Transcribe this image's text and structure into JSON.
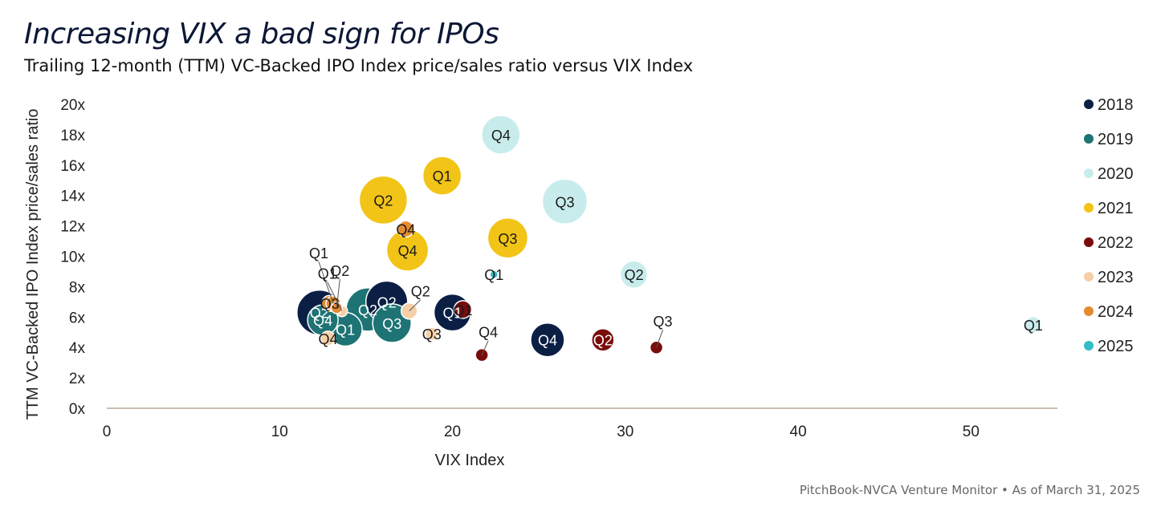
{
  "chart_data": {
    "type": "scatter",
    "title": "Increasing VIX a bad sign for IPOs",
    "subtitle": "Trailing 12-month (TTM) VC-Backed IPO Index price/sales ratio versus VIX Index",
    "xlabel": "VIX Index",
    "ylabel": "TTM VC-Backed IPO Index price/sales ratio",
    "xlim": [
      0,
      55
    ],
    "ylim": [
      0,
      20
    ],
    "xticks": [
      "0",
      "10",
      "20",
      "30",
      "40",
      "50"
    ],
    "yticks": [
      "0x",
      "2x",
      "4x",
      "6x",
      "8x",
      "10x",
      "12x",
      "14x",
      "16x",
      "18x",
      "20x"
    ],
    "legend_position": "right",
    "series": [
      {
        "name": "2018",
        "color": "#0b1f45",
        "points": [
          {
            "label": "Q2",
            "x": 12.3,
            "y": 6.3,
            "size": 28
          },
          {
            "label": "Q2",
            "x": 16.2,
            "y": 7.0,
            "size": 26
          },
          {
            "label": "Q1",
            "x": 20.0,
            "y": 6.3,
            "size": 23
          },
          {
            "label": "Q4",
            "x": 25.5,
            "y": 4.5,
            "size": 21
          }
        ]
      },
      {
        "name": "2019",
        "color": "#1e7374",
        "points": [
          {
            "label": "Q4",
            "x": 12.5,
            "y": 5.8,
            "size": 19
          },
          {
            "label": "Q1",
            "x": 13.8,
            "y": 5.2,
            "size": 21
          },
          {
            "label": "Q2",
            "x": 15.1,
            "y": 6.5,
            "size": 27
          },
          {
            "label": "Q3",
            "x": 16.5,
            "y": 5.6,
            "size": 24
          }
        ]
      },
      {
        "name": "2020",
        "color": "#c8ecec",
        "points": [
          {
            "label": "Q1",
            "x": 53.6,
            "y": 5.5,
            "size": 10
          },
          {
            "label": "Q2",
            "x": 30.5,
            "y": 8.8,
            "size": 17
          },
          {
            "label": "Q3",
            "x": 26.5,
            "y": 13.6,
            "size": 28
          },
          {
            "label": "Q4",
            "x": 22.8,
            "y": 18.0,
            "size": 24
          }
        ]
      },
      {
        "name": "2021",
        "color": "#f2c417",
        "points": [
          {
            "label": "Q1",
            "x": 19.4,
            "y": 15.3,
            "size": 24
          },
          {
            "label": "Q2",
            "x": 16.0,
            "y": 13.7,
            "size": 30
          },
          {
            "label": "Q3",
            "x": 23.2,
            "y": 11.2,
            "size": 25
          },
          {
            "label": "Q4",
            "x": 17.4,
            "y": 10.4,
            "size": 26
          }
        ]
      },
      {
        "name": "2022",
        "color": "#7a0c0c",
        "points": [
          {
            "label": "Q1",
            "x": 20.6,
            "y": 6.5,
            "size": 11
          },
          {
            "label": "Q2",
            "x": 28.7,
            "y": 4.5,
            "size": 14
          },
          {
            "label": "Q3",
            "x": 31.8,
            "y": 4.0,
            "size": 8,
            "callout": true
          },
          {
            "label": "Q4",
            "x": 21.7,
            "y": 3.5,
            "size": 8,
            "callout": true
          }
        ]
      },
      {
        "name": "2023",
        "color": "#f5cfa8",
        "points": [
          {
            "label": "Q1",
            "x": 13.6,
            "y": 6.4,
            "size": 7,
            "callout": true
          },
          {
            "label": "Q2",
            "x": 17.5,
            "y": 6.4,
            "size": 10,
            "callout": true
          },
          {
            "label": "Q3",
            "x": 18.8,
            "y": 4.9,
            "size": 8
          },
          {
            "label": "Q4",
            "x": 12.8,
            "y": 4.6,
            "size": 9
          }
        ]
      },
      {
        "name": "2024",
        "color": "#e58a2f",
        "points": [
          {
            "label": "Q1",
            "x": 13.1,
            "y": 6.9,
            "size": 9,
            "callout": true
          },
          {
            "label": "Q2",
            "x": 13.3,
            "y": 6.6,
            "size": 7,
            "callout": true
          },
          {
            "label": "Q3",
            "x": 12.9,
            "y": 6.9,
            "size": 10
          },
          {
            "label": "Q4",
            "x": 17.3,
            "y": 11.8,
            "size": 10
          }
        ]
      },
      {
        "name": "2025",
        "color": "#34bdc6",
        "points": [
          {
            "label": "Q1",
            "x": 22.4,
            "y": 8.8,
            "size": 5
          }
        ]
      }
    ]
  },
  "source": "PitchBook-NVCA Venture Monitor  •  As of March 31, 2025"
}
